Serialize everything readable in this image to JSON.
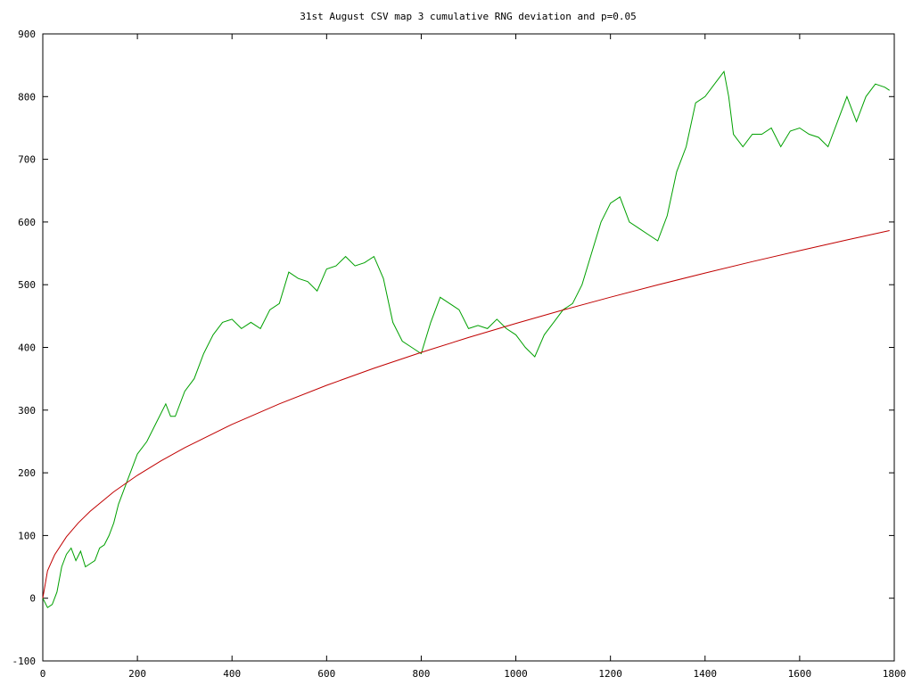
{
  "chart_data": {
    "type": "line",
    "title": "31st August CSV map 3 cumulative RNG deviation and p=0.05",
    "xlabel": "",
    "ylabel": "",
    "xlim": [
      0,
      1800
    ],
    "ylim": [
      -100,
      900
    ],
    "x_ticks": [
      0,
      200,
      400,
      600,
      800,
      1000,
      1200,
      1400,
      1600,
      1800
    ],
    "y_ticks": [
      -100,
      0,
      100,
      200,
      300,
      400,
      500,
      600,
      700,
      800,
      900
    ],
    "grid": false,
    "legend": "none",
    "series": [
      {
        "color": "#00a000",
        "x": [
          0,
          10,
          20,
          30,
          40,
          50,
          60,
          70,
          80,
          90,
          100,
          110,
          120,
          130,
          140,
          150,
          160,
          170,
          180,
          190,
          200,
          220,
          240,
          260,
          270,
          280,
          300,
          320,
          340,
          360,
          380,
          400,
          420,
          440,
          460,
          480,
          500,
          520,
          540,
          560,
          580,
          600,
          620,
          640,
          660,
          680,
          700,
          720,
          740,
          760,
          780,
          800,
          820,
          840,
          860,
          880,
          900,
          920,
          940,
          960,
          980,
          1000,
          1020,
          1040,
          1060,
          1080,
          1100,
          1120,
          1140,
          1160,
          1180,
          1200,
          1220,
          1240,
          1260,
          1280,
          1300,
          1320,
          1340,
          1360,
          1380,
          1400,
          1420,
          1440,
          1450,
          1460,
          1480,
          1500,
          1520,
          1540,
          1560,
          1580,
          1600,
          1620,
          1640,
          1660,
          1680,
          1700,
          1720,
          1740,
          1760,
          1780,
          1790
        ],
        "y": [
          0,
          -15,
          -10,
          10,
          50,
          70,
          80,
          60,
          75,
          50,
          55,
          60,
          80,
          85,
          100,
          120,
          150,
          170,
          190,
          210,
          230,
          250,
          280,
          310,
          290,
          290,
          330,
          350,
          390,
          420,
          440,
          445,
          430,
          440,
          430,
          460,
          470,
          520,
          510,
          505,
          490,
          525,
          530,
          545,
          530,
          535,
          545,
          510,
          440,
          410,
          400,
          390,
          440,
          480,
          470,
          460,
          430,
          435,
          430,
          445,
          430,
          420,
          400,
          385,
          420,
          440,
          460,
          470,
          500,
          550,
          600,
          630,
          640,
          600,
          590,
          580,
          570,
          610,
          680,
          720,
          790,
          800,
          820,
          840,
          800,
          740,
          720,
          740,
          740,
          750,
          720,
          745,
          750,
          740,
          735,
          720,
          760,
          800,
          760,
          800,
          820,
          815,
          810
        ]
      },
      {
        "color": "#c00000",
        "x": [
          0,
          10,
          25,
          50,
          75,
          100,
          150,
          200,
          250,
          300,
          400,
          500,
          600,
          700,
          800,
          900,
          1000,
          1100,
          1200,
          1300,
          1400,
          1500,
          1600,
          1700,
          1790
        ],
        "y": [
          0,
          43.8,
          69.3,
          98.0,
          120.0,
          138.6,
          169.7,
          196.0,
          219.1,
          240.1,
          277.2,
          309.9,
          339.5,
          366.7,
          392.0,
          415.8,
          438.3,
          459.7,
          480.1,
          499.7,
          518.6,
          536.8,
          554.4,
          571.4,
          586.4
        ]
      }
    ]
  }
}
